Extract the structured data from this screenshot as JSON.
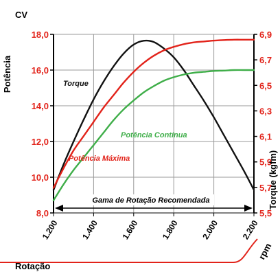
{
  "chart_data": {
    "type": "line",
    "left_axis_unit": "CV",
    "left_axis_title": "Potência",
    "right_axis_title": "Torque (kgfm)",
    "x_axis_unit": "rpm",
    "bottom_label": "Rotação",
    "band_label": "Gama de Rotação Recomendada",
    "xlim": [
      1200,
      2200
    ],
    "ylim_left": [
      8.0,
      18.0
    ],
    "ylim_right": [
      5.5,
      6.9
    ],
    "x_ticks": [
      "1.200",
      "1.400",
      "1.600",
      "1.800",
      "2.000",
      "2.200"
    ],
    "left_ticks": [
      "8,0",
      "10,0",
      "12,0",
      "14,0",
      "16,0",
      "18,0"
    ],
    "right_ticks": [
      "5,5",
      "5,7",
      "5,9",
      "6,1",
      "6,3",
      "6,5",
      "6,7",
      "6,9"
    ],
    "series": [
      {
        "name": "Torque",
        "axis": "right",
        "color": "#111111",
        "x": [
          1200,
          1250,
          1300,
          1350,
          1400,
          1450,
          1500,
          1550,
          1600,
          1650,
          1700,
          1750,
          1800,
          1850,
          1900,
          1950,
          2000,
          2050,
          2100,
          2150,
          2200
        ],
        "values": [
          5.68,
          5.88,
          6.06,
          6.23,
          6.39,
          6.53,
          6.65,
          6.75,
          6.82,
          6.85,
          6.84,
          6.79,
          6.72,
          6.62,
          6.5,
          6.38,
          6.25,
          6.11,
          5.97,
          5.83,
          5.68
        ]
      },
      {
        "name": "Potência Máxima",
        "axis": "left",
        "color": "#e2231a",
        "x": [
          1200,
          1250,
          1300,
          1350,
          1400,
          1450,
          1500,
          1550,
          1600,
          1650,
          1700,
          1750,
          1800,
          1850,
          1900,
          1950,
          2000,
          2050,
          2100,
          2150,
          2200
        ],
        "values": [
          9.4,
          10.5,
          11.5,
          12.3,
          13.1,
          13.9,
          14.6,
          15.3,
          15.9,
          16.4,
          16.8,
          17.1,
          17.3,
          17.45,
          17.55,
          17.6,
          17.65,
          17.68,
          17.7,
          17.7,
          17.7
        ]
      },
      {
        "name": "Potência Contínua",
        "axis": "left",
        "color": "#3fae49",
        "x": [
          1200,
          1250,
          1300,
          1350,
          1400,
          1450,
          1500,
          1550,
          1600,
          1650,
          1700,
          1750,
          1800,
          1850,
          1900,
          1950,
          2000,
          2050,
          2100,
          2150,
          2200
        ],
        "values": [
          8.7,
          9.6,
          10.4,
          11.1,
          11.8,
          12.5,
          13.2,
          13.8,
          14.3,
          14.75,
          15.1,
          15.4,
          15.6,
          15.75,
          15.85,
          15.9,
          15.95,
          15.97,
          16.0,
          16.0,
          16.0
        ]
      }
    ],
    "recommended_range": [
      1200,
      2200
    ],
    "grid": true
  }
}
